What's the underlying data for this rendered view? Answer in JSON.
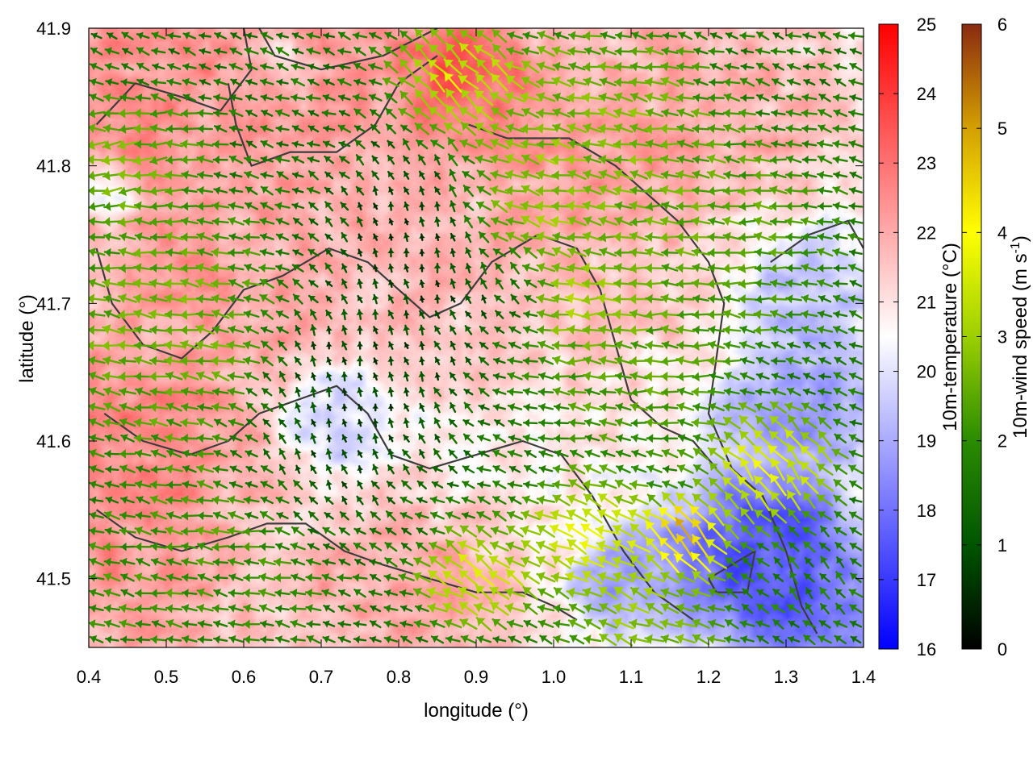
{
  "chart_data": {
    "type": "heatmap",
    "subtype": "temperature field with wind vectors and contour lines",
    "title": "",
    "xlabel": "longitude (°)",
    "ylabel": "latitude (°)",
    "xlim": [
      0.4,
      1.4
    ],
    "ylim": [
      41.45,
      41.9
    ],
    "x_ticks": [
      "0.4",
      "0.5",
      "0.6",
      "0.7",
      "0.8",
      "0.9",
      "1.0",
      "1.1",
      "1.2",
      "1.3",
      "1.4"
    ],
    "y_ticks": [
      "41.5",
      "41.6",
      "41.7",
      "41.8",
      "41.9"
    ],
    "grid": false,
    "colorbars": [
      {
        "label": "10m-temperature (°C)",
        "range": [
          16,
          25
        ],
        "ticks": [
          "16",
          "17",
          "18",
          "19",
          "20",
          "21",
          "22",
          "23",
          "24",
          "25"
        ],
        "colors": [
          "#0000ff",
          "#ffffff",
          "#ff0000"
        ]
      },
      {
        "label_main": "10m-wind speed (m s",
        "label_sup": "-1",
        "label_end": ")",
        "range": [
          0,
          6
        ],
        "ticks": [
          "0",
          "1",
          "2",
          "3",
          "4",
          "5",
          "6"
        ],
        "colors": [
          "#000000",
          "#005500",
          "#2a8c00",
          "#9ccf00",
          "#ffff00",
          "#d4a000",
          "#8b2a10"
        ]
      }
    ],
    "temperature_features": [
      {
        "lon": 0.45,
        "lat": 41.87,
        "temp": 22.6,
        "spread": 0.18
      },
      {
        "lon": 0.75,
        "lat": 41.88,
        "temp": 22.5,
        "spread": 0.15
      },
      {
        "lon": 0.88,
        "lat": 41.88,
        "temp": 24.5,
        "spread": 0.04
      },
      {
        "lon": 0.88,
        "lat": 41.85,
        "temp": 23.5,
        "spread": 0.07
      },
      {
        "lon": 1.05,
        "lat": 41.8,
        "temp": 22.5,
        "spread": 0.12
      },
      {
        "lon": 1.2,
        "lat": 41.85,
        "temp": 22.0,
        "spread": 0.12
      },
      {
        "lon": 0.45,
        "lat": 41.6,
        "temp": 22.8,
        "spread": 0.12
      },
      {
        "lon": 0.45,
        "lat": 41.5,
        "temp": 22.5,
        "spread": 0.1
      },
      {
        "lon": 0.58,
        "lat": 41.72,
        "temp": 22.3,
        "spread": 0.12
      },
      {
        "lon": 0.72,
        "lat": 41.76,
        "temp": 22.0,
        "spread": 0.1
      },
      {
        "lon": 0.8,
        "lat": 41.48,
        "temp": 22.2,
        "spread": 0.1
      },
      {
        "lon": 0.9,
        "lat": 41.72,
        "temp": 21.7,
        "spread": 0.12
      },
      {
        "lon": 1.15,
        "lat": 41.72,
        "temp": 21.5,
        "spread": 0.1
      },
      {
        "lon": 0.72,
        "lat": 41.62,
        "temp": 19.5,
        "spread": 0.05
      },
      {
        "lon": 0.43,
        "lat": 41.78,
        "temp": 19.5,
        "spread": 0.03
      },
      {
        "lon": 0.66,
        "lat": 41.88,
        "temp": 19.8,
        "spread": 0.03
      },
      {
        "lon": 1.3,
        "lat": 41.7,
        "temp": 19.0,
        "spread": 0.08
      },
      {
        "lon": 1.32,
        "lat": 41.62,
        "temp": 18.5,
        "spread": 0.07
      },
      {
        "lon": 1.27,
        "lat": 41.52,
        "temp": 17.0,
        "spread": 0.08
      },
      {
        "lon": 1.33,
        "lat": 41.47,
        "temp": 17.5,
        "spread": 0.07
      },
      {
        "lon": 1.12,
        "lat": 41.5,
        "temp": 18.5,
        "spread": 0.06
      }
    ],
    "wind_zones": [
      {
        "lon": 0.88,
        "lat": 41.86,
        "u": -1.0,
        "v": 1.2,
        "speed": 4.0,
        "spread": 0.06
      },
      {
        "lon": 1.05,
        "lat": 41.82,
        "u": -1.0,
        "v": 0.15,
        "speed": 3.0,
        "spread": 0.12
      },
      {
        "lon": 0.95,
        "lat": 41.77,
        "u": -1.0,
        "v": 0.1,
        "speed": 3.8,
        "spread": 0.07
      },
      {
        "lon": 1.2,
        "lat": 41.75,
        "u": -1.0,
        "v": 0.0,
        "speed": 2.6,
        "spread": 0.12
      },
      {
        "lon": 1.05,
        "lat": 41.7,
        "u": -1.0,
        "v": 0.0,
        "speed": 3.8,
        "spread": 0.05
      },
      {
        "lon": 1.1,
        "lat": 41.65,
        "u": -1.0,
        "v": 0.0,
        "speed": 2.5,
        "spread": 0.1
      },
      {
        "lon": 0.5,
        "lat": 41.68,
        "u": -1.0,
        "v": 0.1,
        "speed": 2.8,
        "spread": 0.12
      },
      {
        "lon": 0.6,
        "lat": 41.55,
        "u": -1.0,
        "v": 0.0,
        "speed": 2.4,
        "spread": 0.1
      },
      {
        "lon": 0.45,
        "lat": 41.8,
        "u": -1.0,
        "v": -0.2,
        "speed": 2.8,
        "spread": 0.07
      },
      {
        "lon": 0.5,
        "lat": 41.5,
        "u": -1.0,
        "v": 0.2,
        "speed": 2.2,
        "spread": 0.1
      },
      {
        "lon": 1.28,
        "lat": 41.58,
        "u": -0.6,
        "v": 1.0,
        "speed": 4.2,
        "spread": 0.06
      },
      {
        "lon": 1.17,
        "lat": 41.53,
        "u": -0.5,
        "v": 1.0,
        "speed": 5.5,
        "spread": 0.04
      },
      {
        "lon": 1.05,
        "lat": 41.53,
        "u": -1.0,
        "v": 0.5,
        "speed": 4.2,
        "spread": 0.06
      },
      {
        "lon": 0.9,
        "lat": 41.5,
        "u": -1.0,
        "v": 0.8,
        "speed": 4.0,
        "spread": 0.05
      },
      {
        "lon": 1.12,
        "lat": 41.47,
        "u": -1.0,
        "v": 0.4,
        "speed": 3.2,
        "spread": 0.07
      },
      {
        "lon": 1.33,
        "lat": 41.5,
        "u": -0.3,
        "v": 0.5,
        "speed": 1.8,
        "spread": 0.06
      },
      {
        "lon": 0.75,
        "lat": 41.65,
        "u": 0.0,
        "v": 1.0,
        "speed": 0.5,
        "spread": 0.1
      },
      {
        "lon": 0.85,
        "lat": 41.75,
        "u": 0.0,
        "v": 1.0,
        "speed": 0.4,
        "spread": 0.1
      },
      {
        "lon": 0.68,
        "lat": 41.58,
        "u": 0.0,
        "v": 1.0,
        "speed": 0.5,
        "spread": 0.08
      }
    ],
    "contours": [
      [
        [
          0.41,
          41.83
        ],
        [
          0.46,
          41.86
        ],
        [
          0.52,
          41.85
        ],
        [
          0.57,
          41.84
        ],
        [
          0.61,
          41.87
        ],
        [
          0.6,
          41.9
        ]
      ],
      [
        [
          0.58,
          41.86
        ],
        [
          0.59,
          41.83
        ],
        [
          0.61,
          41.8
        ],
        [
          0.66,
          41.81
        ],
        [
          0.72,
          41.81
        ],
        [
          0.77,
          41.83
        ],
        [
          0.8,
          41.86
        ],
        [
          0.85,
          41.88
        ]
      ],
      [
        [
          0.89,
          41.83
        ],
        [
          0.94,
          41.82
        ],
        [
          1.02,
          41.82
        ],
        [
          1.08,
          41.8
        ],
        [
          1.12,
          41.78
        ],
        [
          1.16,
          41.76
        ],
        [
          1.2,
          41.73
        ],
        [
          1.22,
          41.7
        ],
        [
          1.21,
          41.66
        ],
        [
          1.2,
          41.62
        ],
        [
          1.23,
          41.58
        ],
        [
          1.27,
          41.56
        ],
        [
          1.3,
          41.52
        ],
        [
          1.32,
          41.48
        ],
        [
          1.34,
          41.46
        ]
      ],
      [
        [
          0.62,
          41.9
        ],
        [
          0.64,
          41.88
        ],
        [
          0.7,
          41.87
        ],
        [
          0.78,
          41.88
        ],
        [
          0.85,
          41.9
        ]
      ],
      [
        [
          0.41,
          41.74
        ],
        [
          0.43,
          41.7
        ],
        [
          0.47,
          41.67
        ],
        [
          0.52,
          41.66
        ],
        [
          0.56,
          41.68
        ],
        [
          0.6,
          41.71
        ],
        [
          0.65,
          41.72
        ],
        [
          0.71,
          41.74
        ],
        [
          0.76,
          41.73
        ],
        [
          0.8,
          41.71
        ],
        [
          0.84,
          41.69
        ],
        [
          0.88,
          41.7
        ],
        [
          0.92,
          41.73
        ],
        [
          0.98,
          41.75
        ],
        [
          1.03,
          41.74
        ],
        [
          1.06,
          41.71
        ],
        [
          1.08,
          41.67
        ],
        [
          1.1,
          41.63
        ],
        [
          1.14,
          41.61
        ],
        [
          1.18,
          41.6
        ],
        [
          1.21,
          41.58
        ]
      ],
      [
        [
          0.42,
          41.62
        ],
        [
          0.47,
          41.6
        ],
        [
          0.53,
          41.59
        ],
        [
          0.58,
          41.6
        ],
        [
          0.62,
          41.62
        ],
        [
          0.67,
          41.63
        ],
        [
          0.72,
          41.64
        ],
        [
          0.76,
          41.62
        ],
        [
          0.79,
          41.59
        ],
        [
          0.84,
          41.58
        ],
        [
          0.9,
          41.59
        ],
        [
          0.96,
          41.6
        ],
        [
          1.01,
          41.59
        ],
        [
          1.05,
          41.56
        ],
        [
          1.09,
          41.52
        ],
        [
          1.13,
          41.49
        ],
        [
          1.18,
          41.47
        ]
      ],
      [
        [
          0.41,
          41.55
        ],
        [
          0.46,
          41.53
        ],
        [
          0.52,
          41.52
        ],
        [
          0.58,
          41.53
        ],
        [
          0.63,
          41.54
        ],
        [
          0.68,
          41.54
        ],
        [
          0.73,
          41.52
        ],
        [
          0.78,
          41.51
        ],
        [
          0.84,
          41.5
        ],
        [
          0.9,
          41.49
        ],
        [
          0.96,
          41.49
        ],
        [
          1.0,
          41.48
        ],
        [
          1.03,
          41.47
        ]
      ],
      [
        [
          1.2,
          41.5
        ],
        [
          1.23,
          41.51
        ],
        [
          1.26,
          41.52
        ],
        [
          1.25,
          41.49
        ],
        [
          1.21,
          41.49
        ],
        [
          1.2,
          41.5
        ]
      ],
      [
        [
          1.28,
          41.73
        ],
        [
          1.33,
          41.75
        ],
        [
          1.38,
          41.76
        ],
        [
          1.4,
          41.74
        ]
      ]
    ]
  }
}
